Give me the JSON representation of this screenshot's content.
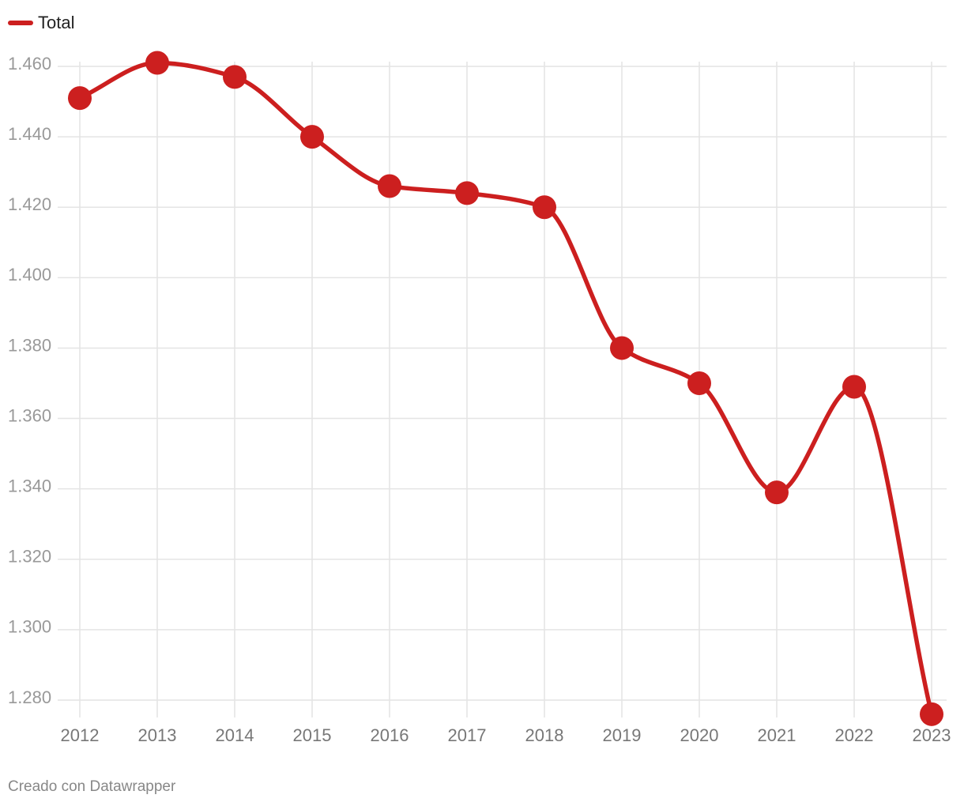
{
  "colors": {
    "series": "#cc1f1f",
    "grid": "#e4e4e4",
    "axis_text": "#999999"
  },
  "legend": {
    "label": "Total"
  },
  "footer": {
    "credit": "Creado con Datawrapper"
  },
  "chart_data": {
    "type": "line",
    "x": [
      "2012",
      "2013",
      "2014",
      "2015",
      "2016",
      "2017",
      "2018",
      "2019",
      "2020",
      "2021",
      "2022",
      "2023"
    ],
    "series": [
      {
        "name": "Total",
        "values": [
          1451,
          1461,
          1457,
          1440,
          1426,
          1424,
          1420,
          1380,
          1370,
          1339,
          1369,
          1276
        ]
      }
    ],
    "yticks": [
      1280,
      1300,
      1320,
      1340,
      1360,
      1380,
      1400,
      1420,
      1440,
      1460
    ],
    "ytick_labels": [
      "1.280",
      "1.300",
      "1.320",
      "1.340",
      "1.360",
      "1.380",
      "1.400",
      "1.420",
      "1.440",
      "1.460"
    ],
    "ylim": [
      1280,
      1460
    ],
    "grid": true,
    "legend_position": "top-left",
    "smooth": true,
    "markers": true
  }
}
